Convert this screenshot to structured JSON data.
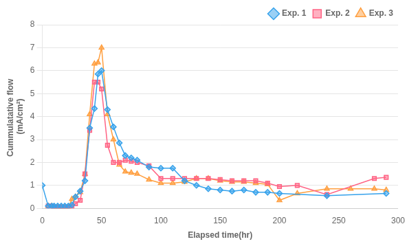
{
  "chart_data": {
    "type": "line",
    "xlabel": "Elapsed time(hr)",
    "ylabel": "Cummulatative flow \n(mA/cm²)",
    "xlim": [
      0,
      300
    ],
    "ylim": [
      0,
      8
    ],
    "xticks": [
      0,
      50,
      100,
      150,
      200,
      250,
      300
    ],
    "yticks": [
      0,
      1,
      2,
      3,
      4,
      5,
      6,
      7,
      8
    ],
    "grid": "y",
    "legend": "upper right",
    "series": [
      {
        "name": "Exp. 1",
        "marker": "diamond",
        "x": [
          0,
          5,
          8,
          10,
          13,
          16,
          19,
          22,
          25,
          28,
          32,
          36,
          40,
          44,
          47,
          50,
          55,
          60,
          65,
          70,
          75,
          80,
          90,
          100,
          110,
          120,
          130,
          140,
          150,
          160,
          170,
          180,
          190,
          200,
          240,
          290
        ],
        "values": [
          1.0,
          0.1,
          0.1,
          0.1,
          0.1,
          0.1,
          0.1,
          0.1,
          0.15,
          0.5,
          0.75,
          1.2,
          3.5,
          4.35,
          5.85,
          6.0,
          4.3,
          3.55,
          2.85,
          2.3,
          2.2,
          2.1,
          1.8,
          1.75,
          1.75,
          1.2,
          1.0,
          0.85,
          0.8,
          0.75,
          0.8,
          0.7,
          0.7,
          0.65,
          0.55,
          0.65
        ]
      },
      {
        "name": "Exp. 2",
        "marker": "square",
        "x": [
          5,
          8,
          10,
          13,
          16,
          19,
          22,
          25,
          28,
          32,
          36,
          40,
          44,
          47,
          50,
          55,
          60,
          65,
          70,
          75,
          80,
          90,
          100,
          110,
          120,
          130,
          140,
          150,
          160,
          170,
          180,
          190,
          200,
          215,
          240,
          280,
          290
        ],
        "values": [
          0.1,
          0.1,
          0.05,
          0.05,
          0.05,
          0.05,
          0.05,
          0.1,
          0.2,
          0.35,
          1.5,
          3.4,
          5.5,
          5.5,
          5.2,
          2.75,
          2.0,
          2.0,
          2.1,
          2.05,
          2.0,
          1.85,
          1.3,
          1.3,
          1.3,
          1.3,
          1.3,
          1.25,
          1.2,
          1.2,
          1.2,
          1.1,
          0.95,
          1.0,
          0.6,
          1.3,
          1.35
        ]
      },
      {
        "name": "Exp. 3",
        "marker": "triangle",
        "x": [
          5,
          8,
          10,
          13,
          16,
          19,
          22,
          25,
          28,
          32,
          36,
          40,
          44,
          47,
          50,
          55,
          60,
          65,
          70,
          75,
          80,
          90,
          100,
          110,
          120,
          130,
          140,
          150,
          160,
          170,
          180,
          190,
          200,
          215,
          240,
          260,
          280,
          290
        ],
        "values": [
          0.1,
          0.1,
          0.05,
          0.05,
          0.05,
          0.05,
          0.05,
          0.4,
          0.5,
          0.7,
          1.5,
          4.1,
          6.3,
          6.35,
          7.0,
          4.1,
          3.0,
          1.9,
          1.6,
          1.55,
          1.5,
          1.25,
          1.1,
          1.1,
          1.15,
          1.3,
          1.3,
          1.2,
          1.15,
          1.15,
          1.1,
          1.05,
          0.35,
          0.65,
          0.85,
          0.85,
          0.85,
          0.8
        ]
      }
    ]
  }
}
